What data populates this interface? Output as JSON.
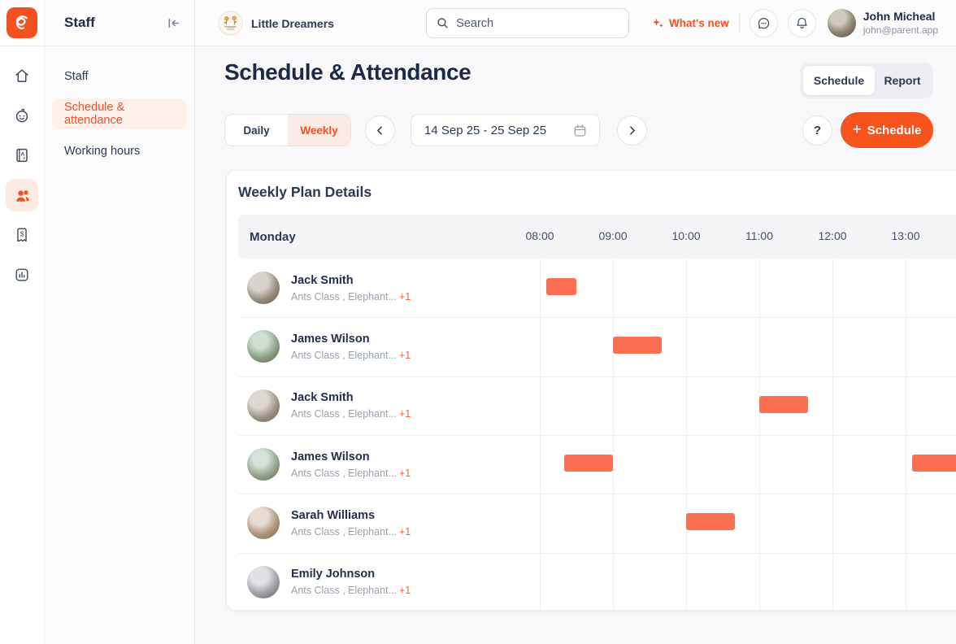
{
  "colors": {
    "accent": "#F4511E",
    "accent_button": "#F6531D",
    "accent_soft": "#FCEBE4",
    "bar_color": "#FB7052"
  },
  "topbar": {
    "section_title": "Staff",
    "org_name": "Little Dreamers",
    "search_placeholder": "Search",
    "whats_new_label": "What's new",
    "user": {
      "name": "John Micheal",
      "email": "john@parent.app"
    }
  },
  "rail": {
    "items": [
      {
        "icon": "home-icon"
      },
      {
        "icon": "children-icon"
      },
      {
        "icon": "learning-icon"
      },
      {
        "icon": "staff-icon",
        "active": true
      },
      {
        "icon": "billing-icon"
      },
      {
        "icon": "reports-icon"
      }
    ]
  },
  "sidebar": {
    "items": [
      {
        "label": "Staff",
        "active": false
      },
      {
        "label": "Schedule & attendance",
        "active": true
      },
      {
        "label": "Working hours",
        "active": false
      }
    ]
  },
  "page": {
    "title": "Schedule & Attendance",
    "view_tabs": [
      {
        "label": "Schedule",
        "active": true
      },
      {
        "label": "Report",
        "active": false
      }
    ],
    "period_tabs": [
      {
        "label": "Daily",
        "active": false
      },
      {
        "label": "Weekly",
        "active": true
      }
    ],
    "date_range": "14 Sep 25 - 25 Sep 25",
    "help_label": "?",
    "add_button_label": "Schedule",
    "add_button_plus": "+"
  },
  "plan": {
    "title": "Weekly Plan Details",
    "day_label": "Monday",
    "time_labels": [
      "08:00",
      "09:00",
      "10:00",
      "11:00",
      "12:00",
      "13:00"
    ],
    "bar_color": "#FB7052",
    "staff": [
      {
        "name": "Jack Smith",
        "classes": "Ants Class , Elephant...",
        "more": "+1",
        "bars": [
          {
            "start": "08:05",
            "end": "08:30"
          }
        ]
      },
      {
        "name": "James Wilson",
        "classes": "Ants Class , Elephant...",
        "more": "+1",
        "bars": [
          {
            "start": "09:00",
            "end": "09:40"
          }
        ]
      },
      {
        "name": "Jack Smith",
        "classes": "Ants Class , Elephant...",
        "more": "+1",
        "bars": [
          {
            "start": "11:00",
            "end": "11:40"
          }
        ]
      },
      {
        "name": "James Wilson",
        "classes": "Ants Class , Elephant...",
        "more": "+1",
        "bars": [
          {
            "start": "08:20",
            "end": "09:00"
          },
          {
            "start": "13:05",
            "end": "13:45"
          }
        ]
      },
      {
        "name": "Sarah Williams",
        "classes": "Ants Class , Elephant...",
        "more": "+1",
        "bars": [
          {
            "start": "10:00",
            "end": "10:40"
          }
        ]
      },
      {
        "name": "Emily Johnson",
        "classes": "Ants Class , Elephant...",
        "more": "+1",
        "bars": []
      }
    ]
  }
}
